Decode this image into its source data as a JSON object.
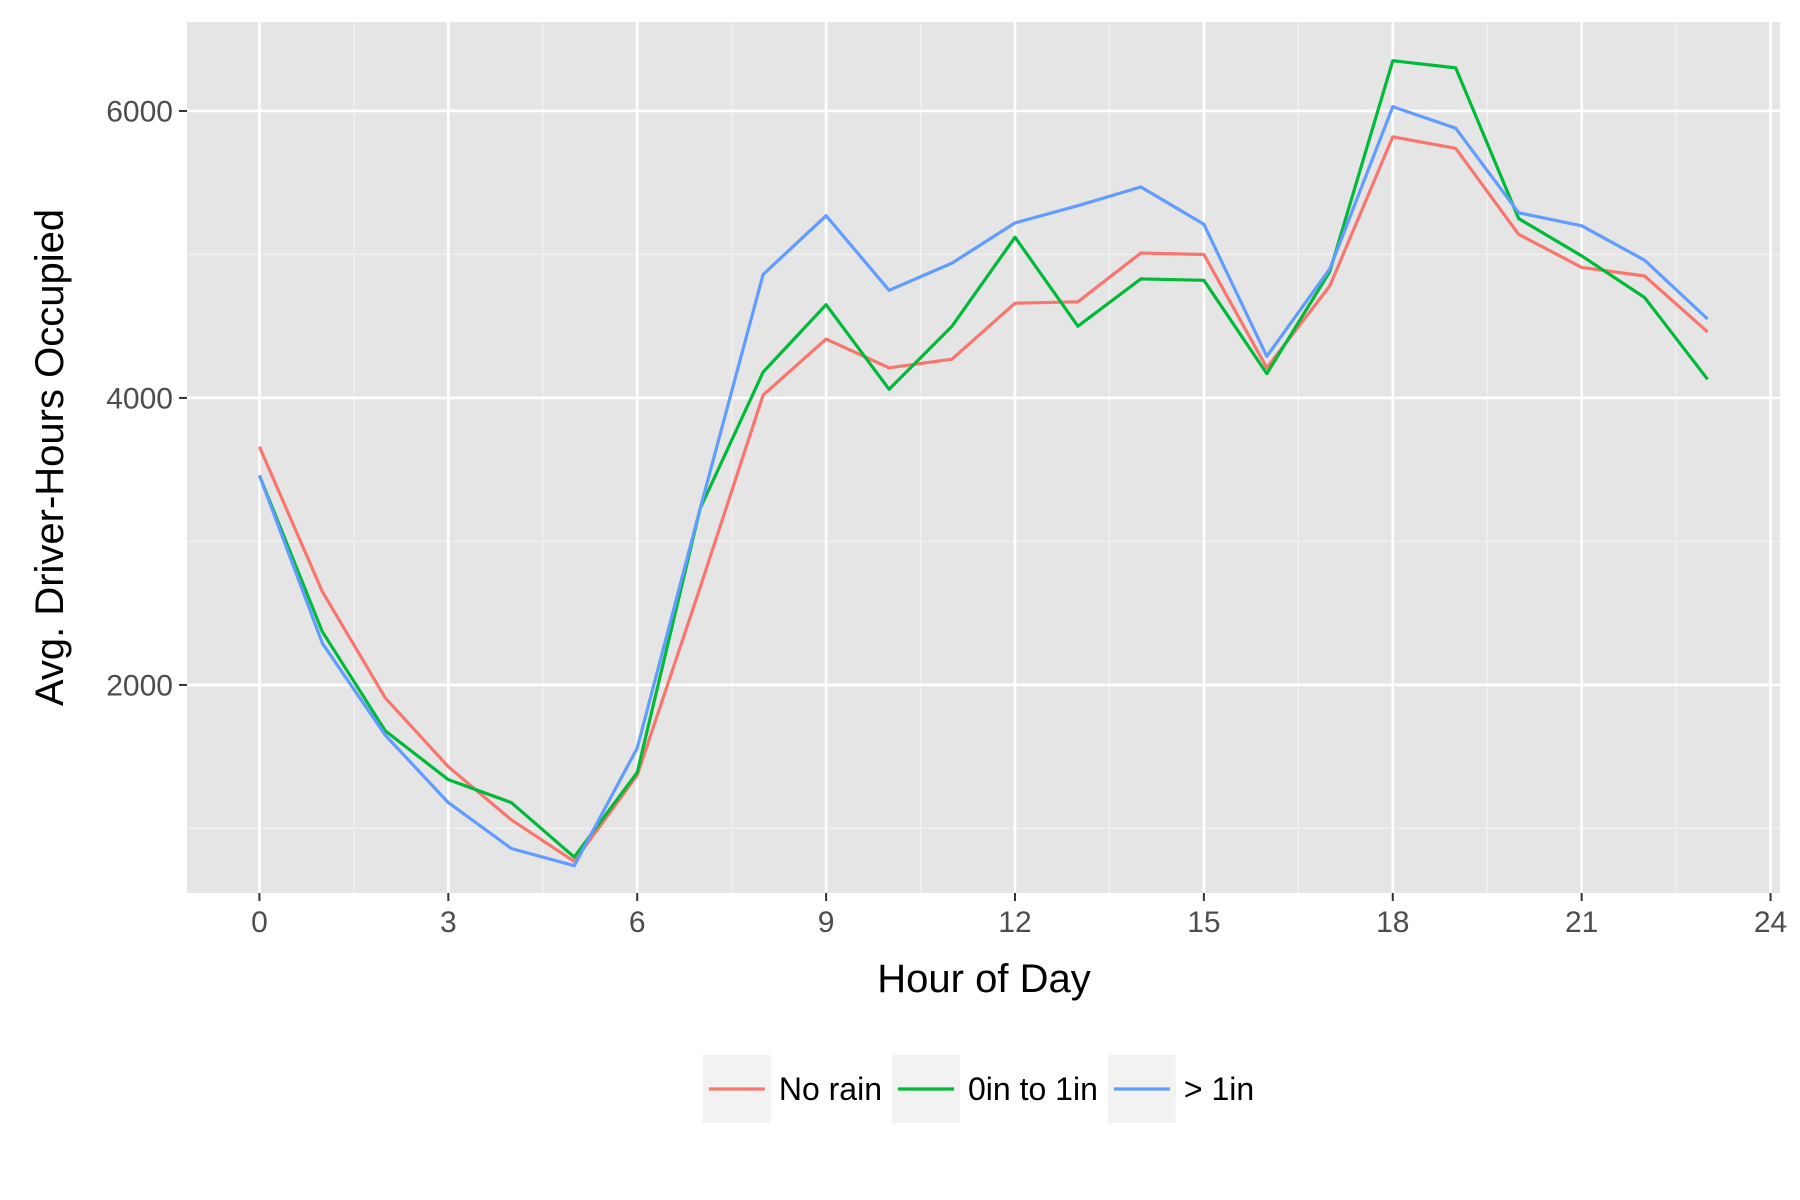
{
  "chart_data": {
    "type": "line",
    "title": "",
    "xlabel": "Hour of Day",
    "ylabel": "Avg. Driver-Hours Occupied",
    "xlim": [
      -1.15,
      24.15
    ],
    "ylim": [
      550,
      6620
    ],
    "x_ticks": [
      0,
      3,
      6,
      9,
      12,
      15,
      18,
      21,
      24
    ],
    "x_tick_labels": [
      "0",
      "3",
      "6",
      "9",
      "12",
      "15",
      "18",
      "21",
      "24"
    ],
    "y_ticks": [
      2000,
      4000,
      6000
    ],
    "y_tick_labels": [
      "2000",
      "4000",
      "6000"
    ],
    "grid": true,
    "legend_position": "bottom",
    "x": [
      0,
      1,
      2,
      3,
      4,
      5,
      6,
      7,
      8,
      9,
      10,
      11,
      12,
      13,
      14,
      15,
      16,
      17,
      18,
      19,
      20,
      21,
      22,
      23
    ],
    "series": [
      {
        "name": "No rain",
        "color": "#F8766D",
        "values": [
          3660,
          2650,
          1910,
          1430,
          1060,
          770,
          1370,
          2680,
          4020,
          4410,
          4210,
          4270,
          4660,
          4670,
          5010,
          5000,
          4210,
          4780,
          5820,
          5740,
          5140,
          4910,
          4850,
          4460
        ]
      },
      {
        "name": "0in to 1in",
        "color": "#00BA38",
        "values": [
          3460,
          2370,
          1680,
          1340,
          1180,
          800,
          1390,
          3230,
          4180,
          4650,
          4060,
          4500,
          5120,
          4500,
          4830,
          4820,
          4170,
          4880,
          6350,
          6300,
          5250,
          4990,
          4700,
          4130
        ]
      },
      {
        "name": "> 1in",
        "color": "#619CFF",
        "values": [
          3460,
          2290,
          1650,
          1180,
          860,
          740,
          1560,
          3230,
          4860,
          5270,
          4750,
          4940,
          5220,
          5340,
          5470,
          5210,
          4290,
          4900,
          6030,
          5880,
          5290,
          5200,
          4960,
          4550
        ]
      }
    ]
  }
}
